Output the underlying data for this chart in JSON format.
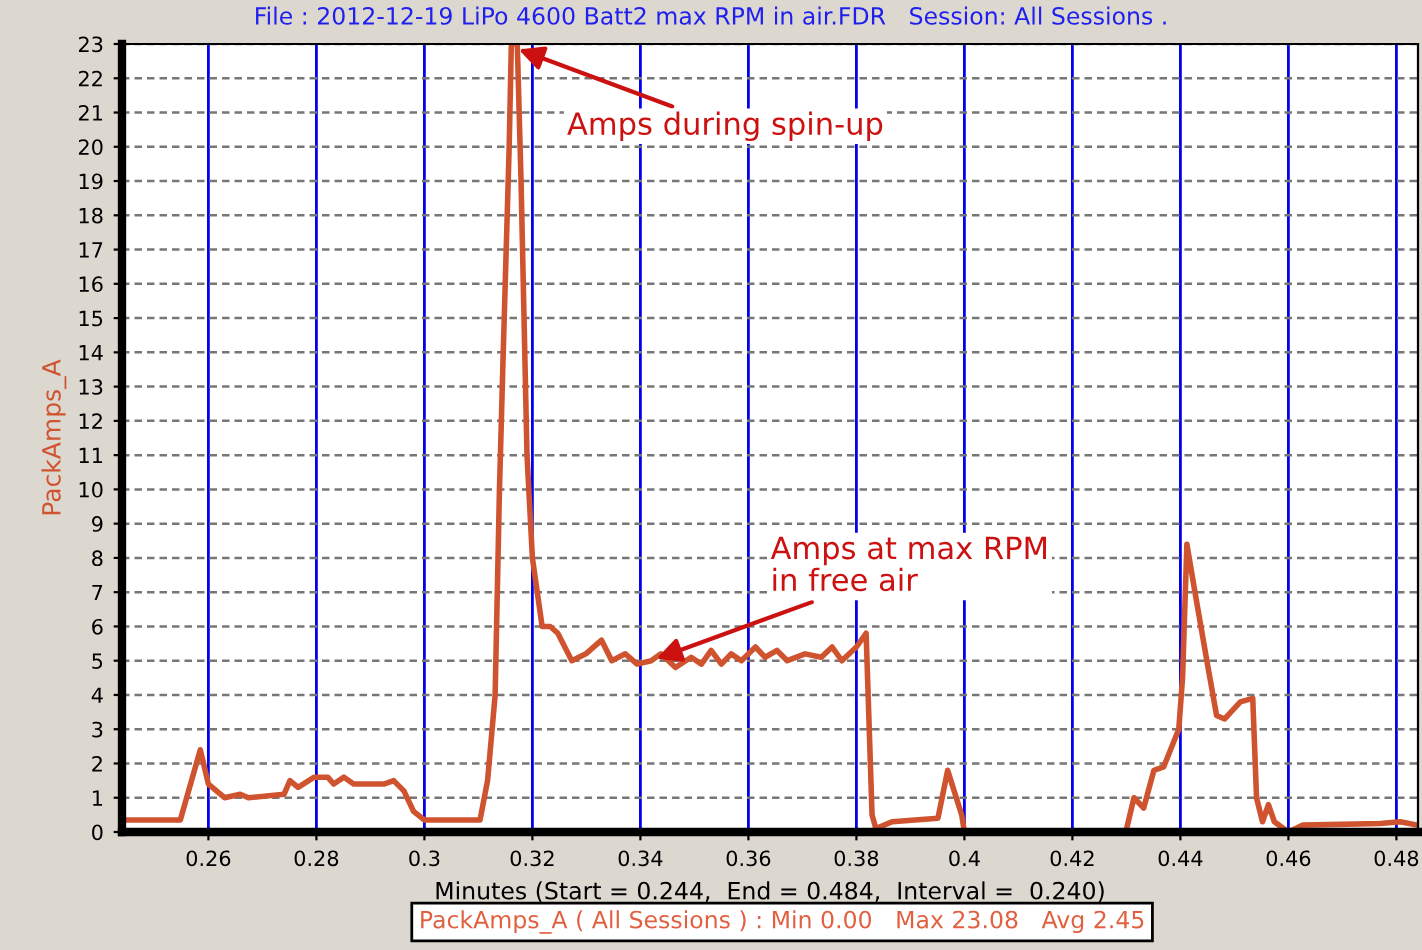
{
  "chart_data": {
    "type": "line",
    "title": "File : 2012-12-19 LiPo 4600 Batt2 max RPM in air.FDR   Session: All Sessions .",
    "xlabel": "Minutes (Start = 0.244,  End = 0.484,  Interval =  0.240)",
    "ylabel": "PackAmps_A",
    "x": [
      0.2445,
      0.2548,
      0.2585,
      0.26,
      0.263,
      0.2659,
      0.2674,
      0.274,
      0.2751,
      0.2766,
      0.2796,
      0.2821,
      0.2832,
      0.2851,
      0.2869,
      0.2925,
      0.2943,
      0.2962,
      0.298,
      0.3,
      0.3103,
      0.3117,
      0.3131,
      0.3139,
      0.3146,
      0.3157,
      0.3161,
      0.3172,
      0.3179,
      0.319,
      0.32,
      0.3218,
      0.3233,
      0.3247,
      0.3273,
      0.3299,
      0.3328,
      0.3347,
      0.3372,
      0.3394,
      0.342,
      0.3438,
      0.3465,
      0.3494,
      0.3513,
      0.3531,
      0.355,
      0.3568,
      0.3587,
      0.3613,
      0.3631,
      0.3653,
      0.3672,
      0.3705,
      0.3735,
      0.3755,
      0.3773,
      0.38,
      0.3818,
      0.3829,
      0.3836,
      0.3866,
      0.3951,
      0.3969,
      0.3995,
      0.4,
      0.4299,
      0.4314,
      0.4332,
      0.4351,
      0.4369,
      0.4397,
      0.4404,
      0.4412,
      0.4427,
      0.4449,
      0.4467,
      0.4482,
      0.4511,
      0.4534,
      0.4541,
      0.4552,
      0.4563,
      0.4574,
      0.46,
      0.4626,
      0.477,
      0.4807,
      0.4839
    ],
    "series": [
      {
        "color": "#d0532f",
        "values": [
          0.35,
          0.35,
          2.4,
          1.4,
          1.0,
          1.1,
          1.0,
          1.1,
          1.5,
          1.3,
          1.6,
          1.6,
          1.4,
          1.6,
          1.4,
          1.4,
          1.5,
          1.2,
          0.6,
          0.35,
          0.35,
          1.5,
          4,
          10,
          14,
          20,
          23,
          23,
          19,
          11,
          8,
          6,
          6,
          5.8,
          5.0,
          5.2,
          5.6,
          5.0,
          5.2,
          4.9,
          5.0,
          5.2,
          4.8,
          5.1,
          4.9,
          5.3,
          4.9,
          5.2,
          5.0,
          5.4,
          5.1,
          5.3,
          5.0,
          5.2,
          5.1,
          5.4,
          5.0,
          5.4,
          5.8,
          0.5,
          0.1,
          0.3,
          0.4,
          1.8,
          0.5,
          0,
          0,
          1.0,
          0.7,
          1.8,
          1.9,
          3.0,
          4.5,
          8.4,
          7.0,
          5.0,
          3.4,
          3.3,
          3.8,
          3.9,
          1.0,
          0.3,
          0.8,
          0.3,
          0.0,
          0.2,
          0.25,
          0.3,
          0.2
        ]
      }
    ],
    "xlim": [
      0.244,
      0.484
    ],
    "ylim": [
      0,
      23
    ],
    "xticks": [
      0.26,
      0.28,
      0.3,
      0.32,
      0.34,
      0.36,
      0.38,
      0.4,
      0.42,
      0.44,
      0.46,
      0.48
    ],
    "yticks": [
      0,
      1,
      2,
      3,
      4,
      5,
      6,
      7,
      8,
      9,
      10,
      11,
      12,
      13,
      14,
      15,
      16,
      17,
      18,
      19,
      20,
      21,
      22,
      23
    ],
    "grid": true,
    "annotations": [
      {
        "text": "Amps during spin-up",
        "x": 0.3165,
        "y": 22.9
      },
      {
        "text": "Amps at max RPM\nin free air",
        "x": 0.342,
        "y": 5.0
      },
      "PackAmps_A ( All Sessions ) : Min 0.00   Max 23.08   Avg 2.45"
    ]
  }
}
